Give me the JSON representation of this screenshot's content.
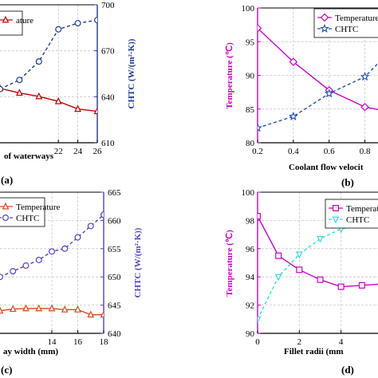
{
  "chart_data": [
    {
      "id": "a",
      "type": "line",
      "panel_label": "(a)",
      "xlabel": "of waterways",
      "y2label": "CHTC (W/(m²·K))",
      "xlim": [
        16,
        26
      ],
      "x_ticks": [
        22,
        24,
        26
      ],
      "y2lim": [
        610,
        700
      ],
      "y2_ticks": [
        610,
        640,
        670,
        700
      ],
      "series": [
        {
          "name": "",
          "axis": "left",
          "color": "#c00000",
          "marker": "triangle",
          "dash": "solid",
          "x": [
            16,
            18,
            20,
            22,
            24,
            26
          ],
          "y": [
            645.5,
            642.5,
            640.2,
            637.0,
            632.0,
            630.5
          ]
        },
        {
          "name": "",
          "axis": "right",
          "color": "#1f3a9a",
          "marker": "circle",
          "dash": "dashed",
          "x": [
            16,
            18,
            20,
            22,
            24,
            26
          ],
          "y": [
            645,
            651,
            663,
            684,
            688,
            690
          ]
        }
      ],
      "legend": [
        {
          "label": "ature",
          "color": "#c00000",
          "marker": "triangle",
          "dash": "solid"
        }
      ]
    },
    {
      "id": "b",
      "type": "line",
      "panel_label": "(b)",
      "xlabel": "Coolant flow velocit",
      "ylabel": "Temperature (℃)",
      "xlim": [
        0.2,
        0.9
      ],
      "x_ticks": [
        0.2,
        0.4,
        0.6,
        0.8
      ],
      "ylim": [
        80,
        100
      ],
      "y_ticks": [
        80,
        85,
        90,
        95,
        100
      ],
      "series": [
        {
          "name": "Temperature",
          "axis": "left",
          "color": "#cc00cc",
          "marker": "diamond",
          "dash": "solid",
          "x": [
            0.2,
            0.4,
            0.6,
            0.8,
            0.9
          ],
          "y": [
            97.0,
            92.0,
            87.8,
            85.3,
            84.8
          ]
        },
        {
          "name": "CHTC",
          "axis": "left",
          "color": "#1f4fb5",
          "marker": "star",
          "dash": "dashed",
          "x": [
            0.2,
            0.4,
            0.6,
            0.8,
            0.9
          ],
          "y": [
            82.2,
            83.9,
            87.3,
            89.8,
            92.5
          ]
        }
      ],
      "legend": [
        {
          "label": "Temperature",
          "color": "#cc00cc",
          "marker": "diamond",
          "dash": "solid"
        },
        {
          "label": "CHTC",
          "color": "#1f4fb5",
          "marker": "star",
          "dash": "dashed"
        }
      ]
    },
    {
      "id": "c",
      "type": "line",
      "panel_label": "(c)",
      "xlabel": "ay width (mm)",
      "y2label": "CHTC (W/(m²·K))",
      "xlim": [
        10,
        18
      ],
      "x_ticks": [
        14,
        16,
        18
      ],
      "y2lim": [
        640,
        665
      ],
      "y2_ticks": [
        640,
        645,
        650,
        655,
        660,
        665
      ],
      "series": [
        {
          "name": "Temperature",
          "axis": "right",
          "color": "#d9481c",
          "marker": "triangle",
          "dash": "solid",
          "x": [
            10,
            11,
            12,
            13,
            14,
            15,
            16,
            17,
            18
          ],
          "y": [
            644.0,
            644.3,
            644.4,
            644.4,
            644.4,
            644.2,
            644.2,
            643.3,
            643.3
          ]
        },
        {
          "name": "CHTC",
          "axis": "right",
          "color": "#5a3fc0",
          "marker": "circle",
          "dash": "dashed",
          "x": [
            10,
            11,
            12,
            13,
            14,
            15,
            16,
            17,
            18
          ],
          "y": [
            650.0,
            651.0,
            652.0,
            653.0,
            654.5,
            655.0,
            657.0,
            659.0,
            661.0
          ]
        }
      ],
      "legend": [
        {
          "label": "Temperature",
          "color": "#d9481c",
          "marker": "triangle",
          "dash": "solid"
        },
        {
          "label": "CHTC",
          "color": "#5a3fc0",
          "marker": "circle",
          "dash": "dashed"
        }
      ]
    },
    {
      "id": "d",
      "type": "line",
      "panel_label": "(d)",
      "xlabel": "Fillet radii (mm",
      "ylabel": "Temperature (℃)",
      "xlim": [
        0,
        6
      ],
      "x_ticks": [
        0,
        2,
        4
      ],
      "ylim": [
        90,
        100
      ],
      "y_ticks": [
        90,
        92,
        94,
        96,
        98,
        100
      ],
      "series": [
        {
          "name": "Temperature",
          "axis": "left",
          "color": "#cc00cc",
          "marker": "square",
          "dash": "solid",
          "x": [
            0,
            1,
            2,
            3,
            4,
            5,
            6
          ],
          "y": [
            98.3,
            95.5,
            94.5,
            93.8,
            93.3,
            93.4,
            93.5
          ]
        },
        {
          "name": "CHTC",
          "axis": "left",
          "color": "#33dddd",
          "marker": "triangle-down",
          "dash": "dashed",
          "x": [
            0,
            1,
            2,
            3,
            4,
            5,
            6
          ],
          "y": [
            91.0,
            94.0,
            95.6,
            96.7,
            97.4,
            97.7,
            97.8
          ]
        }
      ],
      "legend": [
        {
          "label": "Temperature",
          "color": "#cc00cc",
          "marker": "square",
          "dash": "solid"
        },
        {
          "label": "CHTC",
          "color": "#33dddd",
          "marker": "triangle-down",
          "dash": "dashed"
        }
      ]
    }
  ]
}
